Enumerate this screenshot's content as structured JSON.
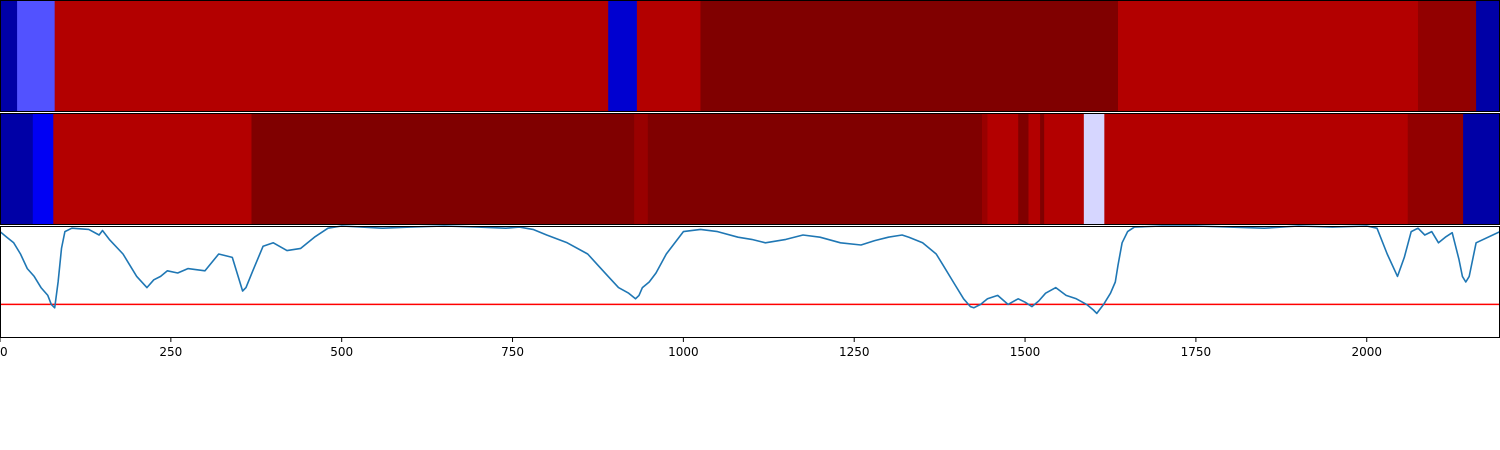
{
  "chart_data": [
    {
      "type": "heatmap",
      "xlim": [
        0,
        2195
      ],
      "colormap": "seismic",
      "color_range": [
        -1,
        1
      ],
      "segments": [
        {
          "start": 0,
          "end": 25,
          "value": -0.75
        },
        {
          "start": 25,
          "end": 80,
          "value": -0.34
        },
        {
          "start": 80,
          "end": 890,
          "value": 0.8
        },
        {
          "start": 890,
          "end": 932,
          "value": -0.63
        },
        {
          "start": 932,
          "end": 1025,
          "value": 0.8
        },
        {
          "start": 1025,
          "end": 1636,
          "value": 1.0
        },
        {
          "start": 1636,
          "end": 2075,
          "value": 0.8
        },
        {
          "start": 2075,
          "end": 2160,
          "value": 0.93
        },
        {
          "start": 2160,
          "end": 2195,
          "value": -0.75
        }
      ]
    },
    {
      "type": "heatmap",
      "xlim": [
        0,
        2195
      ],
      "colormap": "seismic",
      "color_range": [
        -1,
        1
      ],
      "segments": [
        {
          "start": 0,
          "end": 48,
          "value": -0.75
        },
        {
          "start": 48,
          "end": 78,
          "value": -0.53
        },
        {
          "start": 78,
          "end": 368,
          "value": 0.8
        },
        {
          "start": 368,
          "end": 928,
          "value": 1.0
        },
        {
          "start": 928,
          "end": 948,
          "value": 0.9
        },
        {
          "start": 948,
          "end": 1437,
          "value": 1.0
        },
        {
          "start": 1437,
          "end": 1445,
          "value": 0.9
        },
        {
          "start": 1445,
          "end": 1490,
          "value": 0.8
        },
        {
          "start": 1490,
          "end": 1505,
          "value": 1.0
        },
        {
          "start": 1505,
          "end": 1522,
          "value": 0.8
        },
        {
          "start": 1522,
          "end": 1528,
          "value": 1.0
        },
        {
          "start": 1528,
          "end": 1586,
          "value": 0.8
        },
        {
          "start": 1586,
          "end": 1616,
          "value": -0.08
        },
        {
          "start": 1616,
          "end": 2060,
          "value": 0.8
        },
        {
          "start": 2060,
          "end": 2141,
          "value": 0.93
        },
        {
          "start": 2141,
          "end": 2195,
          "value": -0.75
        }
      ]
    },
    {
      "type": "line",
      "xlim": [
        0,
        2195
      ],
      "ylim": [
        0,
        1
      ],
      "threshold": 0.3,
      "threshold_color": "#ff0000",
      "line_color": "#1f77b4",
      "xticks": [
        0,
        250,
        500,
        750,
        1000,
        1250,
        1500,
        1750,
        2000
      ],
      "xtick_labels": [
        "0",
        "250",
        "500",
        "750",
        "1000",
        "1250",
        "1500",
        "1750",
        "2000"
      ],
      "series": [
        {
          "x": [
            0,
            10,
            20,
            30,
            40,
            50,
            60,
            70,
            75,
            80,
            85,
            90,
            95,
            105,
            130,
            145,
            150,
            160,
            180,
            200,
            215,
            225,
            235,
            245,
            260,
            275,
            300,
            320,
            340,
            355,
            360,
            370,
            385,
            400,
            420,
            440,
            460,
            480,
            500,
            530,
            560,
            600,
            650,
            700,
            740,
            760,
            780,
            800,
            830,
            860,
            875,
            890,
            905,
            920,
            930,
            935,
            940,
            950,
            960,
            975,
            1000,
            1025,
            1050,
            1080,
            1100,
            1120,
            1150,
            1175,
            1200,
            1230,
            1260,
            1280,
            1300,
            1320,
            1330,
            1350,
            1370,
            1380,
            1395,
            1410,
            1420,
            1425,
            1435,
            1445,
            1460,
            1475,
            1490,
            1500,
            1510,
            1520,
            1530,
            1545,
            1560,
            1575,
            1590,
            1600,
            1605,
            1615,
            1625,
            1632,
            1636,
            1642,
            1650,
            1660,
            1700,
            1750,
            1800,
            1850,
            1900,
            1950,
            2000,
            2015,
            2030,
            2045,
            2055,
            2065,
            2075,
            2085,
            2095,
            2105,
            2115,
            2125,
            2135,
            2140,
            2145,
            2150,
            2160,
            2195
          ],
          "y": [
            0.95,
            0.9,
            0.85,
            0.75,
            0.62,
            0.55,
            0.45,
            0.38,
            0.3,
            0.27,
            0.5,
            0.8,
            0.95,
            0.98,
            0.97,
            0.92,
            0.96,
            0.88,
            0.75,
            0.55,
            0.45,
            0.52,
            0.55,
            0.6,
            0.58,
            0.62,
            0.6,
            0.75,
            0.72,
            0.42,
            0.45,
            0.6,
            0.82,
            0.85,
            0.78,
            0.8,
            0.9,
            0.98,
            1.0,
            0.99,
            0.98,
            0.99,
            1.0,
            0.99,
            0.98,
            0.99,
            0.97,
            0.92,
            0.85,
            0.75,
            0.65,
            0.55,
            0.45,
            0.4,
            0.35,
            0.38,
            0.45,
            0.5,
            0.58,
            0.75,
            0.95,
            0.97,
            0.95,
            0.9,
            0.88,
            0.85,
            0.88,
            0.92,
            0.9,
            0.85,
            0.83,
            0.87,
            0.9,
            0.92,
            0.9,
            0.85,
            0.75,
            0.65,
            0.5,
            0.35,
            0.28,
            0.27,
            0.3,
            0.35,
            0.38,
            0.3,
            0.35,
            0.32,
            0.28,
            0.33,
            0.4,
            0.45,
            0.38,
            0.35,
            0.3,
            0.25,
            0.22,
            0.3,
            0.4,
            0.5,
            0.65,
            0.85,
            0.95,
            0.99,
            1.0,
            1.0,
            0.99,
            0.98,
            1.0,
            0.99,
            1.0,
            0.98,
            0.75,
            0.55,
            0.72,
            0.95,
            0.98,
            0.92,
            0.95,
            0.85,
            0.9,
            0.94,
            0.7,
            0.55,
            0.5,
            0.55,
            0.85,
            0.95
          ]
        }
      ]
    }
  ]
}
